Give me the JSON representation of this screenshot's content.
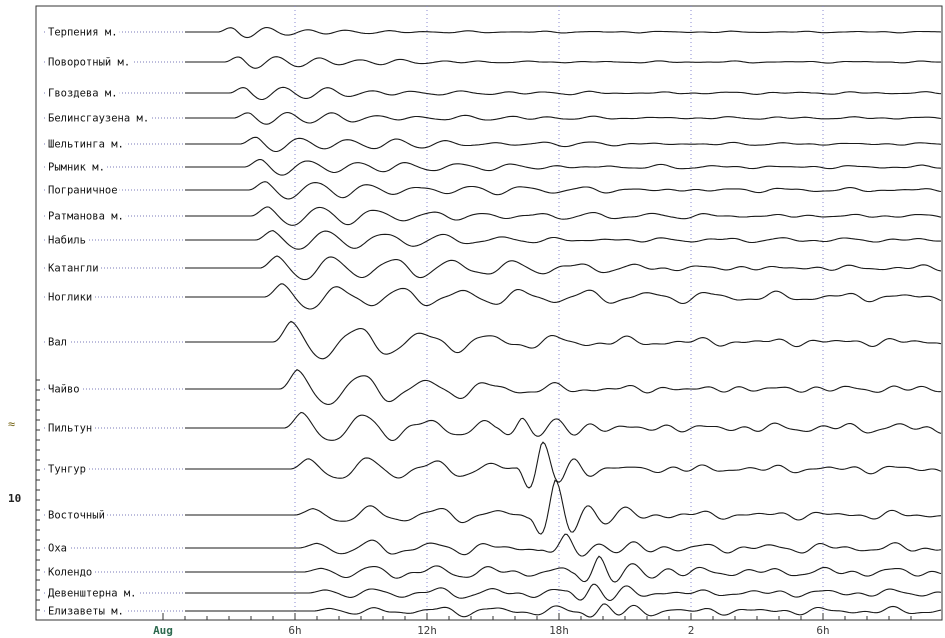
{
  "chart_data": {
    "type": "line",
    "title": "",
    "xlabel": "",
    "ylabel": "",
    "x_start_label": "Aug",
    "x_ticks": [
      {
        "hour": 6,
        "label": "6h"
      },
      {
        "hour": 12,
        "label": "12h"
      },
      {
        "hour": 18,
        "label": "18h"
      },
      {
        "hour": 24,
        "label": "2"
      },
      {
        "hour": 30,
        "label": "6h"
      }
    ],
    "x_range_hours": [
      0,
      34
    ],
    "y_axis_symbol": "≈",
    "y_tick_label": "10",
    "grid": {
      "vertical_dotted": true
    },
    "series": [
      {
        "name": "Терпения м.",
        "onset_hour": 2.5,
        "amp": 0.55,
        "period": 1.8,
        "decay": 4,
        "noise": 0.05
      },
      {
        "name": "Поворотный м.",
        "onset_hour": 2.8,
        "amp": 0.6,
        "period": 1.9,
        "decay": 5,
        "noise": 0.06
      },
      {
        "name": "Гвоздева м.",
        "onset_hour": 3.0,
        "amp": 0.6,
        "period": 2.0,
        "decay": 6,
        "noise": 0.08
      },
      {
        "name": "Белинсгаузена м.",
        "onset_hour": 3.2,
        "amp": 0.55,
        "period": 2.0,
        "decay": 7,
        "noise": 0.08
      },
      {
        "name": "Шельтинга м.",
        "onset_hour": 3.5,
        "amp": 0.65,
        "period": 2.2,
        "decay": 8,
        "noise": 0.08
      },
      {
        "name": "Рымник м.",
        "onset_hour": 3.7,
        "amp": 0.7,
        "period": 2.3,
        "decay": 8,
        "noise": 0.1
      },
      {
        "name": "Пограничное",
        "onset_hour": 3.9,
        "amp": 0.75,
        "period": 2.4,
        "decay": 9,
        "noise": 0.12
      },
      {
        "name": "Ратманова м.",
        "onset_hour": 4.0,
        "amp": 0.8,
        "period": 2.5,
        "decay": 9,
        "noise": 0.12
      },
      {
        "name": "Набиль",
        "onset_hour": 4.2,
        "amp": 0.8,
        "period": 2.6,
        "decay": 9,
        "noise": 0.12
      },
      {
        "name": "Катангли",
        "onset_hour": 4.4,
        "amp": 1.0,
        "period": 2.7,
        "decay": 10,
        "noise": 0.2
      },
      {
        "name": "Ноглики",
        "onset_hour": 4.6,
        "amp": 1.1,
        "period": 2.8,
        "decay": 10,
        "noise": 0.25
      },
      {
        "name": "Вал",
        "onset_hour": 5.0,
        "amp": 1.6,
        "period": 3.0,
        "decay": 10,
        "noise": 0.3
      },
      {
        "name": "Чайво",
        "onset_hour": 5.3,
        "amp": 1.5,
        "period": 2.9,
        "decay": 9,
        "noise": 0.3
      },
      {
        "name": "Пильтун",
        "onset_hour": 5.5,
        "amp": 1.2,
        "period": 2.8,
        "decay": 9,
        "noise": 0.35,
        "burst_hour": 16.3,
        "burst_amp": 1.0
      },
      {
        "name": "Тунгур",
        "onset_hour": 5.8,
        "amp": 0.8,
        "period": 2.8,
        "decay": 9,
        "noise": 0.3,
        "burst_hour": 17.2,
        "burst_amp": 2.0
      },
      {
        "name": "Восточный",
        "onset_hour": 6.0,
        "amp": 0.5,
        "period": 2.8,
        "decay": 9,
        "noise": 0.3,
        "burst_hour": 17.8,
        "burst_amp": 2.2
      },
      {
        "name": "Оха",
        "onset_hour": 6.2,
        "amp": 0.4,
        "period": 2.6,
        "decay": 9,
        "noise": 0.3,
        "burst_hour": 18.3,
        "burst_amp": 1.0
      },
      {
        "name": "Колендо",
        "onset_hour": 6.4,
        "amp": 0.35,
        "period": 2.6,
        "decay": 9,
        "noise": 0.3,
        "burst_hour": 19.8,
        "burst_amp": 1.2
      },
      {
        "name": "Девенштерна м.",
        "onset_hour": 6.6,
        "amp": 0.3,
        "period": 2.6,
        "decay": 9,
        "noise": 0.25,
        "burst_hour": 19.5,
        "burst_amp": 0.7
      },
      {
        "name": "Елизаветы м.",
        "onset_hour": 6.8,
        "amp": 0.25,
        "period": 2.6,
        "decay": 9,
        "noise": 0.25,
        "burst_hour": 20.0,
        "burst_amp": 0.5
      }
    ]
  }
}
